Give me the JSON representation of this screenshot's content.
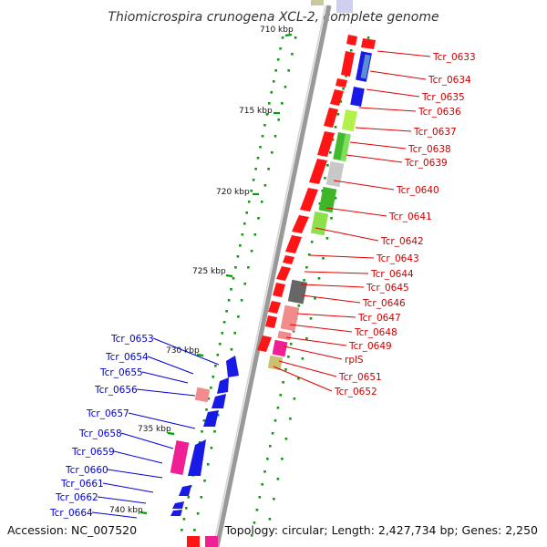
{
  "title": "Thiomicrospira crunogena XCL-2, complete genome",
  "footer": {
    "accession": "Accession: NC_007520",
    "summary": "Topology: circular; Length: 2,427,734 bp; Genes: 2,250"
  },
  "ticks": [
    "710 kbp",
    "715 kbp",
    "720 kbp",
    "725 kbp",
    "730 kbp",
    "735 kbp",
    "740 kbp"
  ],
  "right_labels": [
    "Tcr_0633",
    "Tcr_0634",
    "Tcr_0635",
    "Tcr_0636",
    "Tcr_0637",
    "Tcr_0638",
    "Tcr_0639",
    "Tcr_0640",
    "Tcr_0641",
    "Tcr_0642",
    "Tcr_0643",
    "Tcr_0644",
    "Tcr_0645",
    "Tcr_0646",
    "Tcr_0647",
    "Tcr_0648",
    "Tcr_0649",
    "rplS",
    "Tcr_0651",
    "Tcr_0652"
  ],
  "left_labels": [
    "Tcr_0653",
    "Tcr_0654",
    "Tcr_0655",
    "Tcr_0656",
    "Tcr_0657",
    "Tcr_0658",
    "Tcr_0659",
    "Tcr_0660",
    "Tcr_0661",
    "Tcr_0662",
    "Tcr_0664"
  ],
  "colors": {
    "forward_gene": "#ff1a1a",
    "reverse_gene": "#1f1fe6",
    "right_label": "#cc0000",
    "left_label": "#0000cc",
    "backbone": "#8c8c8c",
    "gc_dots": "#1f8f1f"
  }
}
